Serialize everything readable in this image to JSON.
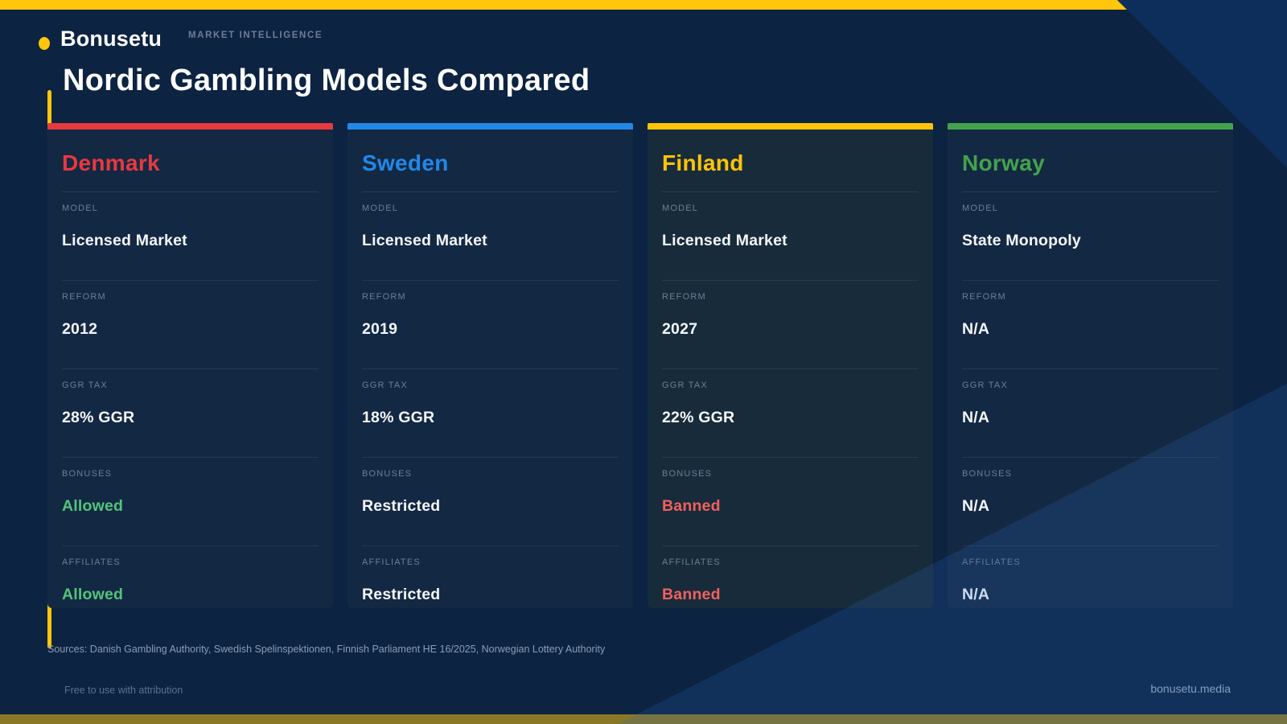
{
  "brand": {
    "logo": "Bonusetu",
    "tagline": "MARKET INTELLIGENCE",
    "site": "bonusetu.media"
  },
  "page": {
    "title": "Nordic Gambling Models Compared"
  },
  "colors": {
    "accent_yellow": "#ffc60d",
    "background": "#0c2342",
    "corner_shade": "#0d2e5b",
    "card_background": "#132843",
    "finland_card_background": "#172b3a",
    "positive": "#52c579",
    "negative": "#f2605f",
    "neutral_value": "#f4f7fb",
    "denmark_accent": "#e8393f",
    "sweden_accent": "#2188e8",
    "finland_accent": "#ffc408",
    "norway_accent": "#43a34d"
  },
  "cards": [
    {
      "country": "Denmark",
      "accent": "#e8393f",
      "card_background": "#132843",
      "fields": [
        {
          "label": "MODEL",
          "value": "Licensed Market",
          "tone": "neutral"
        },
        {
          "label": "REFORM",
          "value": "2012",
          "tone": "neutral"
        },
        {
          "label": "GGR TAX",
          "value": "28% GGR",
          "tone": "neutral"
        },
        {
          "label": "BONUSES",
          "value": "Allowed",
          "tone": "positive"
        },
        {
          "label": "AFFILIATES",
          "value": "Allowed",
          "tone": "positive"
        }
      ]
    },
    {
      "country": "Sweden",
      "accent": "#2188e8",
      "card_background": "#132843",
      "fields": [
        {
          "label": "MODEL",
          "value": "Licensed Market",
          "tone": "neutral"
        },
        {
          "label": "REFORM",
          "value": "2019",
          "tone": "neutral"
        },
        {
          "label": "GGR TAX",
          "value": "18% GGR",
          "tone": "neutral"
        },
        {
          "label": "BONUSES",
          "value": "Restricted",
          "tone": "neutral"
        },
        {
          "label": "AFFILIATES",
          "value": "Restricted",
          "tone": "neutral"
        }
      ]
    },
    {
      "country": "Finland",
      "accent": "#ffc408",
      "card_background": "#172b3a",
      "fields": [
        {
          "label": "MODEL",
          "value": "Licensed Market",
          "tone": "neutral"
        },
        {
          "label": "REFORM",
          "value": "2027",
          "tone": "neutral"
        },
        {
          "label": "GGR TAX",
          "value": "22% GGR",
          "tone": "neutral"
        },
        {
          "label": "BONUSES",
          "value": "Banned",
          "tone": "negative"
        },
        {
          "label": "AFFILIATES",
          "value": "Banned",
          "tone": "negative"
        }
      ]
    },
    {
      "country": "Norway",
      "accent": "#43a34d",
      "card_background": "#132843",
      "fields": [
        {
          "label": "MODEL",
          "value": "State Monopoly",
          "tone": "neutral"
        },
        {
          "label": "REFORM",
          "value": "N/A",
          "tone": "neutral"
        },
        {
          "label": "GGR TAX",
          "value": "N/A",
          "tone": "neutral"
        },
        {
          "label": "BONUSES",
          "value": "N/A",
          "tone": "neutral"
        },
        {
          "label": "AFFILIATES",
          "value": "N/A",
          "tone": "neutral"
        }
      ]
    }
  ],
  "footer": {
    "sources": "Sources: Danish Gambling Authority, Swedish Spelinspektionen, Finnish Parliament HE 16/2025, Norwegian Lottery Authority",
    "license": "Free to use with attribution"
  },
  "chart_data": {
    "type": "table",
    "title": "Nordic Gambling Models Compared",
    "columns": [
      "Denmark",
      "Sweden",
      "Finland",
      "Norway"
    ],
    "rows": [
      {
        "label": "MODEL",
        "values": [
          "Licensed Market",
          "Licensed Market",
          "Licensed Market",
          "State Monopoly"
        ]
      },
      {
        "label": "REFORM",
        "values": [
          "2012",
          "2019",
          "2027",
          "N/A"
        ]
      },
      {
        "label": "GGR TAX",
        "values": [
          "28% GGR",
          "18% GGR",
          "22% GGR",
          "N/A"
        ]
      },
      {
        "label": "BONUSES",
        "values": [
          "Allowed",
          "Restricted",
          "Banned",
          "N/A"
        ]
      },
      {
        "label": "AFFILIATES",
        "values": [
          "Allowed",
          "Restricted",
          "Banned",
          "N/A"
        ]
      }
    ]
  }
}
